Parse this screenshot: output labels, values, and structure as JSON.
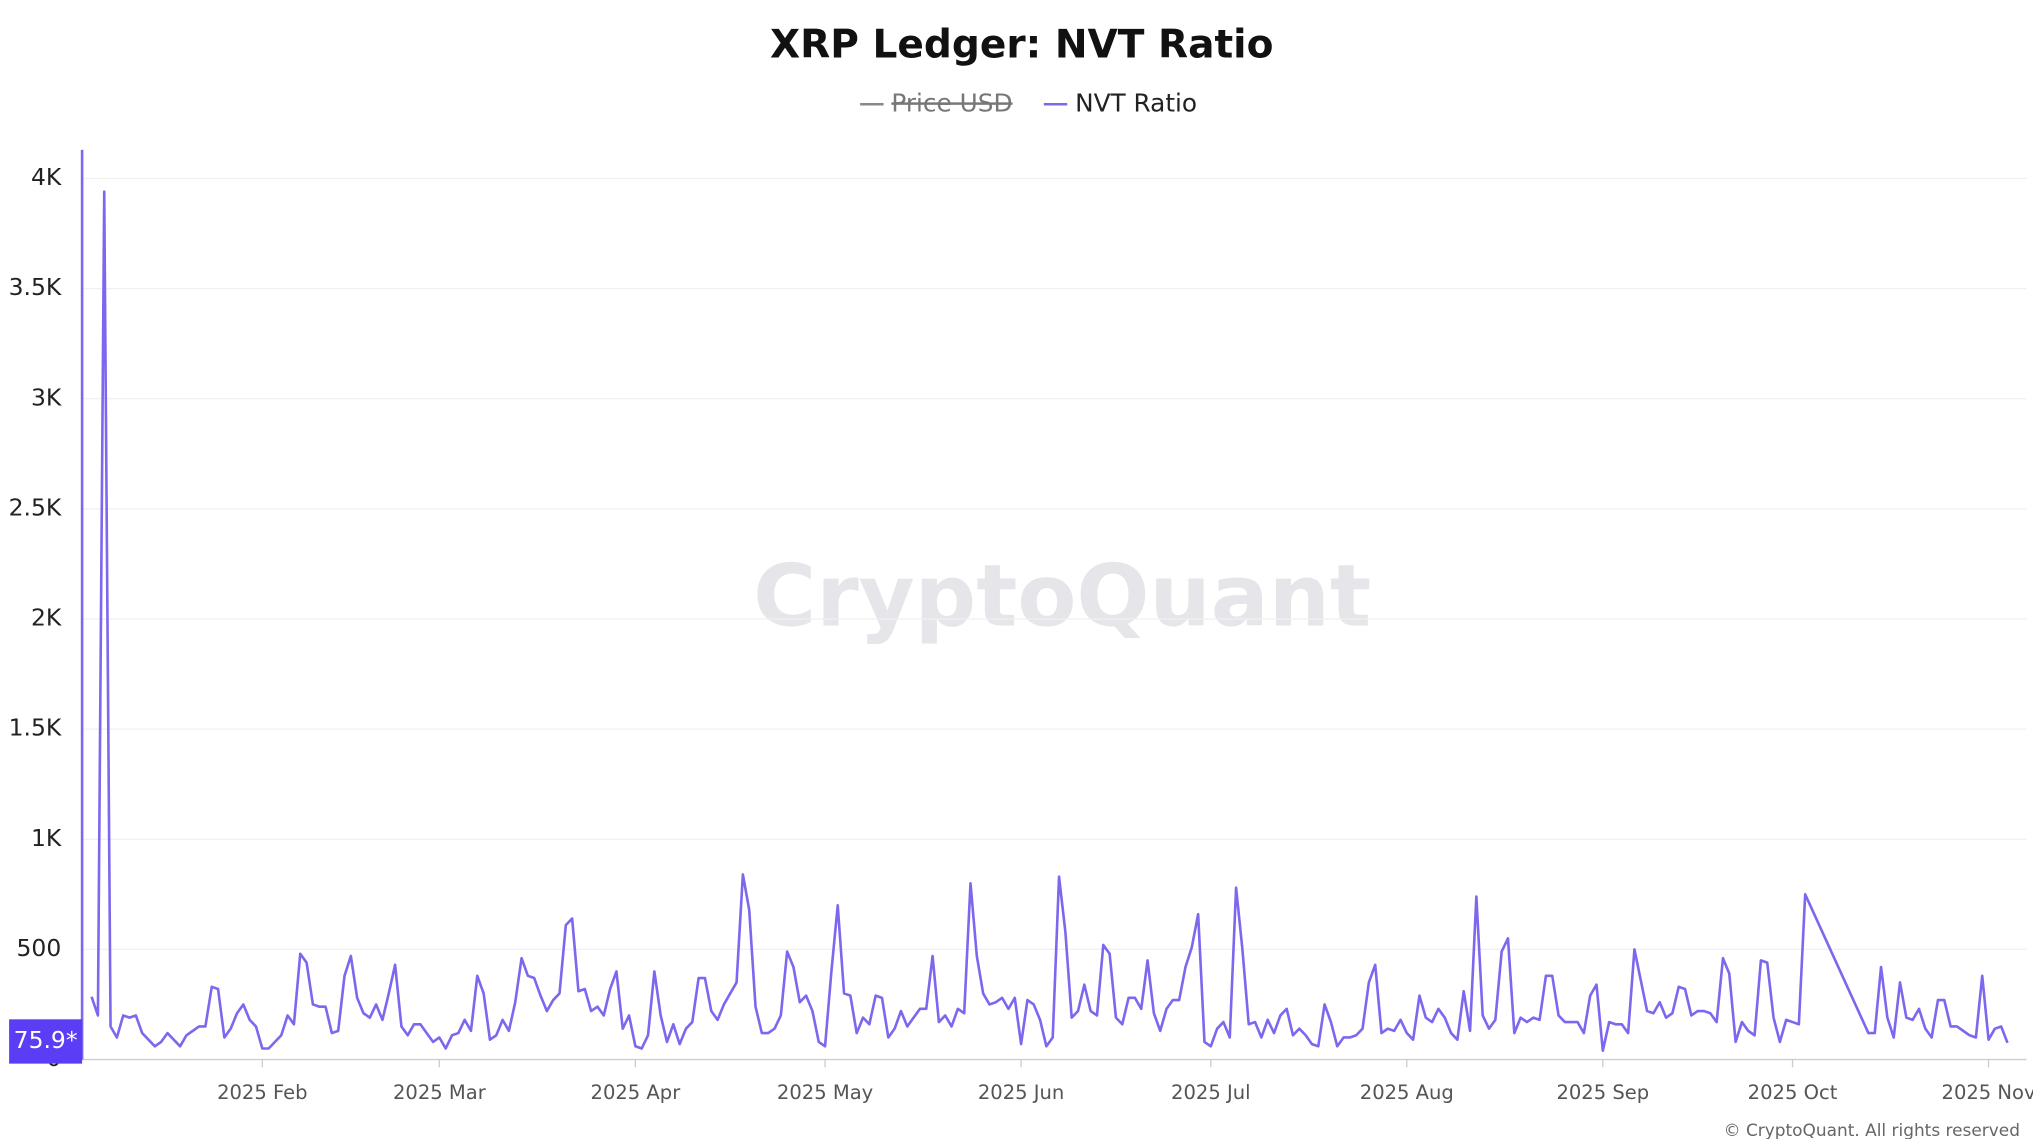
{
  "chart_data": {
    "type": "line",
    "title": "XRP Ledger: NVT Ratio",
    "hidden_series": [
      {
        "name": "Price USD",
        "color": "#888888"
      }
    ],
    "series": [
      {
        "name": "NVT Ratio",
        "color": "#7b68ee",
        "values": [
          285,
          200,
          3940,
          150,
          100,
          200,
          190,
          200,
          120,
          90,
          60,
          80,
          120,
          90,
          60,
          110,
          130,
          150,
          150,
          330,
          320,
          100,
          140,
          210,
          250,
          180,
          150,
          50,
          50,
          80,
          110,
          200,
          160,
          480,
          440,
          250,
          240,
          240,
          120,
          130,
          380,
          470,
          280,
          210,
          190,
          250,
          180,
          300,
          430,
          150,
          110,
          160,
          160,
          120,
          80,
          100,
          50,
          110,
          120,
          180,
          130,
          380,
          300,
          90,
          110,
          180,
          130,
          260,
          460,
          380,
          370,
          290,
          220,
          270,
          300,
          610,
          640,
          310,
          320,
          220,
          240,
          200,
          320,
          400,
          140,
          200,
          60,
          50,
          110,
          400,
          200,
          80,
          160,
          70,
          140,
          170,
          370,
          370,
          220,
          180,
          250,
          300,
          350,
          840,
          680,
          240,
          120,
          120,
          140,
          200,
          490,
          420,
          260,
          290,
          220,
          80,
          60,
          400,
          700,
          300,
          290,
          120,
          190,
          160,
          290,
          280,
          100,
          140,
          220,
          150,
          190,
          230,
          230,
          470,
          170,
          200,
          150,
          230,
          210,
          800,
          470,
          300,
          250,
          260,
          280,
          230,
          280,
          70,
          270,
          250,
          180,
          60,
          100,
          830,
          580,
          190,
          220,
          340,
          220,
          200,
          520,
          480,
          190,
          160,
          280,
          280,
          230,
          450,
          210,
          130,
          230,
          270,
          270,
          420,
          510,
          660,
          80,
          60,
          140,
          170,
          100,
          780,
          500,
          160,
          170,
          100,
          180,
          120,
          200,
          230,
          110,
          140,
          110,
          70,
          60,
          250,
          170,
          60,
          100,
          100,
          110,
          140,
          350,
          430,
          120,
          140,
          130,
          180,
          120,
          90,
          290,
          190,
          170,
          230,
          190,
          120,
          90,
          310,
          130,
          740,
          200,
          140,
          180,
          490,
          550,
          120,
          190,
          170,
          190,
          180,
          380,
          380,
          200,
          170,
          170,
          170,
          120,
          290,
          340,
          40,
          170,
          160,
          160,
          120,
          500,
          360,
          220,
          210,
          260,
          190,
          210,
          330,
          320,
          200,
          220,
          220,
          210,
          170,
          460,
          390,
          80,
          170,
          130,
          110,
          450,
          440,
          190,
          80,
          180,
          170,
          160,
          750,
          687,
          624,
          561,
          498,
          435,
          372,
          309,
          246,
          183,
          120,
          120,
          420,
          190,
          100,
          350,
          190,
          180,
          230,
          140,
          100,
          270,
          270,
          150,
          150,
          130,
          110,
          100,
          380,
          90,
          140,
          150,
          75.9
        ]
      }
    ],
    "last_value_label": "75.9*",
    "xlim": [
      -1.5,
      306
    ],
    "xticks": [
      {
        "value": 27,
        "label": "2025 Feb"
      },
      {
        "value": 55,
        "label": "2025 Mar"
      },
      {
        "value": 86,
        "label": "2025 Apr"
      },
      {
        "value": 116,
        "label": "2025 May"
      },
      {
        "value": 147,
        "label": "2025 Jun"
      },
      {
        "value": 177,
        "label": "2025 Jul"
      },
      {
        "value": 208,
        "label": "2025 Aug"
      },
      {
        "value": 239,
        "label": "2025 Sep"
      },
      {
        "value": 269,
        "label": "2025 Oct"
      },
      {
        "value": 300,
        "label": "2025 Nov"
      }
    ],
    "ylim": [
      0,
      4130
    ],
    "yticks": [
      0,
      500,
      {
        "value": 1000,
        "label": "1K"
      },
      {
        "value": 1500,
        "label": "1.5K"
      },
      {
        "value": 2000,
        "label": "2K"
      },
      {
        "value": 2500,
        "label": "2.5K"
      },
      {
        "value": 3000,
        "label": "3K"
      },
      {
        "value": 3500,
        "label": "3.5K"
      },
      {
        "value": 4000,
        "label": "4K"
      }
    ],
    "grid": true,
    "watermark": "CryptoQuant",
    "credit": "© CryptoQuant. All rights reserved"
  }
}
